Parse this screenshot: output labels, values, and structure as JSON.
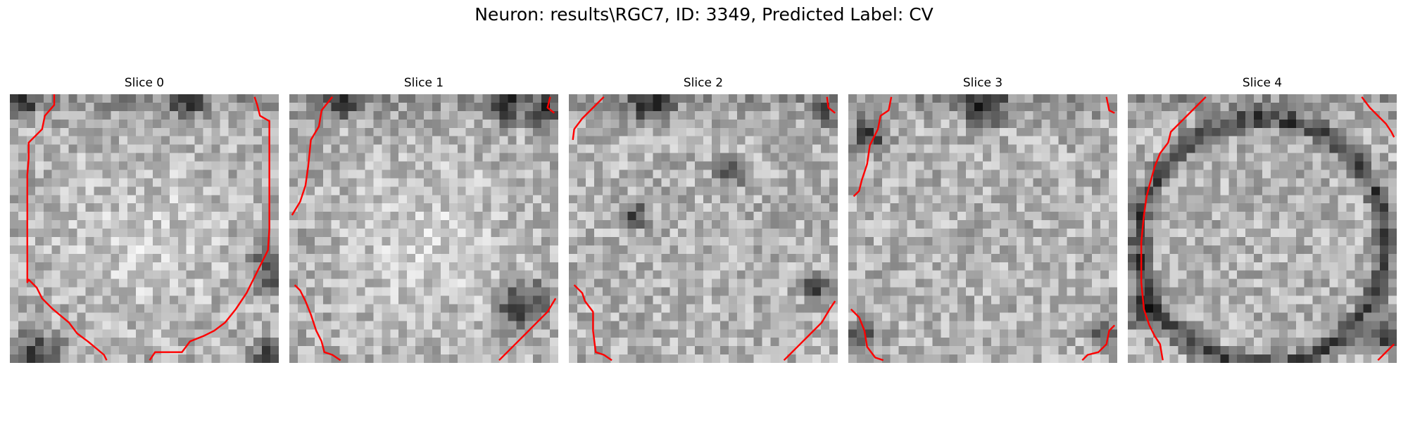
{
  "figure": {
    "title": "Neuron: results\\RGC7, ID: 3349, Predicted Label: CV"
  },
  "grid_size": 32,
  "contour_color": "#ff0000",
  "panels": [
    {
      "title": "Slice 0",
      "seed": 101,
      "bright_center": true,
      "dark_blobs": [
        [
          0.66,
          0.04,
          0.08
        ],
        [
          0.1,
          0.98,
          0.14
        ],
        [
          0.97,
          0.98,
          0.1
        ],
        [
          0.98,
          0.65,
          0.12
        ],
        [
          0.05,
          0.03,
          0.08
        ]
      ],
      "contours": [
        [
          [
            0.165,
            0.0
          ],
          [
            0.165,
            0.04
          ],
          [
            0.13,
            0.08
          ],
          [
            0.12,
            0.13
          ],
          [
            0.07,
            0.18
          ],
          [
            0.07,
            0.24
          ],
          [
            0.065,
            0.3
          ],
          [
            0.065,
            0.52
          ],
          [
            0.065,
            0.7
          ],
          [
            0.07,
            0.69
          ],
          [
            0.08,
            0.7
          ],
          [
            0.1,
            0.72
          ],
          [
            0.12,
            0.76
          ],
          [
            0.16,
            0.8
          ],
          [
            0.22,
            0.85
          ],
          [
            0.25,
            0.89
          ],
          [
            0.29,
            0.92
          ],
          [
            0.35,
            0.97
          ],
          [
            0.36,
            0.99
          ]
        ],
        [
          [
            0.52,
            0.99
          ],
          [
            0.54,
            0.96
          ],
          [
            0.64,
            0.96
          ],
          [
            0.67,
            0.92
          ],
          [
            0.72,
            0.9
          ],
          [
            0.76,
            0.88
          ],
          [
            0.8,
            0.85
          ],
          [
            0.84,
            0.8
          ],
          [
            0.88,
            0.74
          ],
          [
            0.92,
            0.66
          ],
          [
            0.96,
            0.58
          ],
          [
            0.965,
            0.5
          ],
          [
            0.965,
            0.3
          ],
          [
            0.965,
            0.1
          ],
          [
            0.93,
            0.08
          ],
          [
            0.92,
            0.04
          ],
          [
            0.91,
            0.01
          ]
        ]
      ]
    },
    {
      "title": "Slice 1",
      "seed": 202,
      "bright_center": true,
      "dark_blobs": [
        [
          0.8,
          0.04,
          0.1
        ],
        [
          0.95,
          0.07,
          0.09
        ],
        [
          0.86,
          0.78,
          0.14
        ],
        [
          0.2,
          0.03,
          0.08
        ]
      ],
      "contours": [
        [
          [
            0.16,
            0.01
          ],
          [
            0.12,
            0.06
          ],
          [
            0.11,
            0.12
          ],
          [
            0.08,
            0.17
          ],
          [
            0.07,
            0.27
          ],
          [
            0.06,
            0.34
          ],
          [
            0.04,
            0.4
          ],
          [
            0.01,
            0.45
          ]
        ],
        [
          [
            0.02,
            0.71
          ],
          [
            0.04,
            0.73
          ],
          [
            0.06,
            0.77
          ],
          [
            0.08,
            0.82
          ],
          [
            0.1,
            0.88
          ],
          [
            0.12,
            0.92
          ],
          [
            0.13,
            0.96
          ],
          [
            0.16,
            0.97
          ],
          [
            0.19,
            0.99
          ]
        ],
        [
          [
            0.78,
            0.99
          ],
          [
            0.84,
            0.93
          ],
          [
            0.88,
            0.89
          ],
          [
            0.92,
            0.85
          ],
          [
            0.96,
            0.81
          ],
          [
            0.99,
            0.76
          ]
        ],
        [
          [
            0.97,
            0.01
          ],
          [
            0.96,
            0.05
          ],
          [
            0.985,
            0.07
          ]
        ]
      ]
    },
    {
      "title": "Slice 2",
      "seed": 303,
      "bright_center": false,
      "dark_blobs": [
        [
          0.3,
          0.03,
          0.12
        ],
        [
          0.95,
          0.08,
          0.06
        ],
        [
          0.92,
          0.72,
          0.08
        ],
        [
          0.6,
          0.28,
          0.08
        ],
        [
          0.25,
          0.45,
          0.07
        ]
      ],
      "contours": [
        [
          [
            0.13,
            0.01
          ],
          [
            0.09,
            0.05
          ],
          [
            0.05,
            0.09
          ],
          [
            0.02,
            0.13
          ],
          [
            0.015,
            0.17
          ]
        ],
        [
          [
            0.02,
            0.71
          ],
          [
            0.05,
            0.74
          ],
          [
            0.06,
            0.77
          ],
          [
            0.09,
            0.81
          ],
          [
            0.09,
            0.88
          ],
          [
            0.1,
            0.96
          ],
          [
            0.13,
            0.97
          ],
          [
            0.16,
            0.99
          ]
        ],
        [
          [
            0.8,
            0.99
          ],
          [
            0.86,
            0.93
          ],
          [
            0.9,
            0.89
          ],
          [
            0.94,
            0.85
          ],
          [
            0.97,
            0.8
          ],
          [
            0.99,
            0.77
          ]
        ],
        [
          [
            0.96,
            0.01
          ],
          [
            0.965,
            0.05
          ],
          [
            0.99,
            0.07
          ]
        ]
      ]
    },
    {
      "title": "Slice 3",
      "seed": 404,
      "bright_center": false,
      "dark_blobs": [
        [
          0.08,
          0.15,
          0.1
        ],
        [
          0.5,
          0.04,
          0.12
        ],
        [
          0.95,
          0.9,
          0.08
        ],
        [
          0.05,
          0.9,
          0.08
        ]
      ],
      "contours": [
        [
          [
            0.16,
            0.01
          ],
          [
            0.15,
            0.06
          ],
          [
            0.12,
            0.08
          ],
          [
            0.11,
            0.13
          ],
          [
            0.08,
            0.19
          ],
          [
            0.07,
            0.26
          ],
          [
            0.05,
            0.32
          ],
          [
            0.04,
            0.36
          ],
          [
            0.02,
            0.38
          ]
        ],
        [
          [
            0.01,
            0.8
          ],
          [
            0.04,
            0.83
          ],
          [
            0.06,
            0.88
          ],
          [
            0.07,
            0.94
          ],
          [
            0.1,
            0.98
          ],
          [
            0.13,
            0.99
          ]
        ],
        [
          [
            0.87,
            0.99
          ],
          [
            0.89,
            0.97
          ],
          [
            0.93,
            0.96
          ],
          [
            0.96,
            0.93
          ],
          [
            0.97,
            0.88
          ],
          [
            0.99,
            0.86
          ]
        ],
        [
          [
            0.96,
            0.01
          ],
          [
            0.97,
            0.06
          ],
          [
            0.99,
            0.07
          ]
        ]
      ]
    },
    {
      "title": "Slice 4",
      "seed": 505,
      "bright_center": false,
      "ring": true,
      "dark_blobs": [
        [
          0.05,
          0.8,
          0.1
        ],
        [
          0.96,
          0.9,
          0.1
        ]
      ],
      "contours": [
        [
          [
            0.29,
            0.01
          ],
          [
            0.24,
            0.06
          ],
          [
            0.2,
            0.1
          ],
          [
            0.16,
            0.14
          ],
          [
            0.15,
            0.18
          ],
          [
            0.12,
            0.22
          ],
          [
            0.1,
            0.27
          ],
          [
            0.08,
            0.34
          ],
          [
            0.07,
            0.38
          ],
          [
            0.06,
            0.45
          ],
          [
            0.05,
            0.55
          ],
          [
            0.05,
            0.7
          ],
          [
            0.06,
            0.8
          ],
          [
            0.08,
            0.86
          ],
          [
            0.1,
            0.9
          ],
          [
            0.12,
            0.93
          ],
          [
            0.13,
            0.99
          ]
        ],
        [
          [
            0.87,
            0.01
          ],
          [
            0.9,
            0.05
          ],
          [
            0.93,
            0.08
          ],
          [
            0.96,
            0.11
          ],
          [
            0.98,
            0.14
          ],
          [
            0.99,
            0.16
          ]
        ],
        [
          [
            0.93,
            0.99
          ],
          [
            0.96,
            0.96
          ],
          [
            0.99,
            0.93
          ]
        ]
      ]
    }
  ]
}
